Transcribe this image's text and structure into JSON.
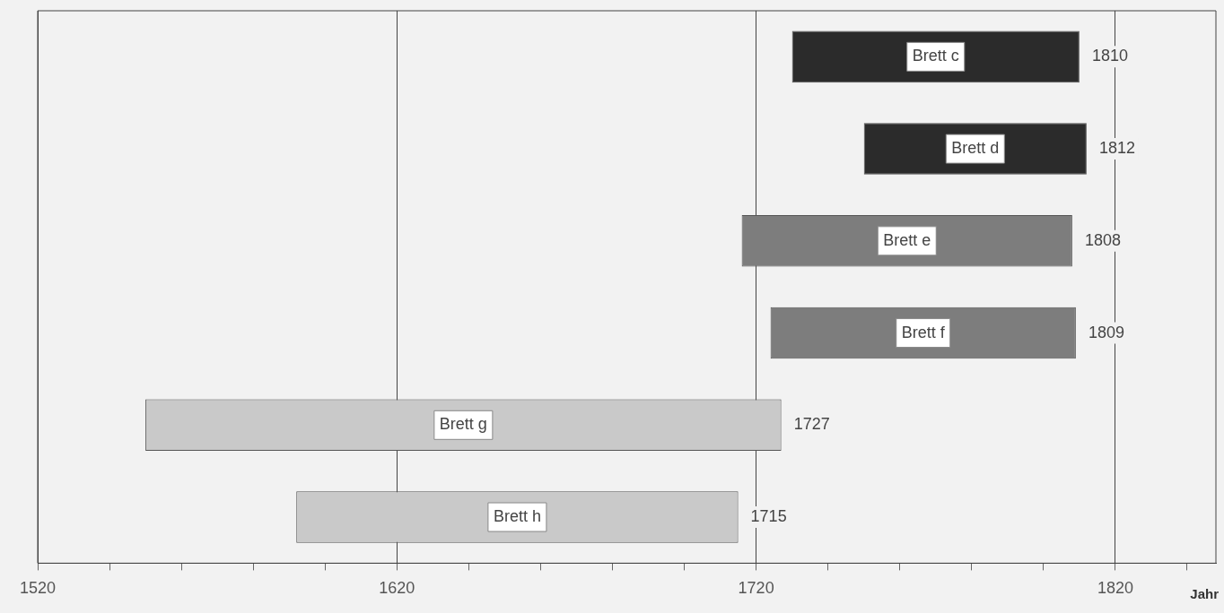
{
  "chart_data": {
    "type": "bar",
    "orientation": "horizontal",
    "xlabel": "Jahr",
    "categories": [
      "Brett c",
      "Brett d",
      "Brett e",
      "Brett f",
      "Brett g",
      "Brett h"
    ],
    "base": [
      1730,
      1750,
      1716,
      1724,
      1550,
      1592
    ],
    "values": [
      80,
      62,
      92,
      85,
      177,
      123
    ],
    "colors": [
      "#2b2b2b",
      "#2b2b2b",
      "#7d7d7d",
      "#7d7d7d",
      "#c9c9c9",
      "#c9c9c9"
    ],
    "value_labels": [
      "1810",
      "1812",
      "1808",
      "1809",
      "1727",
      "1715"
    ],
    "xlim": [
      1520,
      1848
    ],
    "xticks": [
      1520,
      {
        "value": 1540,
        "label": null
      },
      {
        "value": 1560,
        "label": null
      },
      {
        "value": 1580,
        "label": null
      },
      {
        "value": 1600,
        "label": null
      },
      1620,
      {
        "value": 1640,
        "label": null
      },
      {
        "value": 1660,
        "label": null
      },
      {
        "value": 1680,
        "label": null
      },
      {
        "value": 1700,
        "label": null
      },
      1720,
      {
        "value": 1740,
        "label": null
      },
      {
        "value": 1760,
        "label": null
      },
      {
        "value": 1780,
        "label": null
      },
      {
        "value": 1800,
        "label": null
      },
      1820,
      {
        "value": 1840,
        "label": null
      }
    ],
    "grid": "x",
    "tick_labels": "x",
    "legend": false
  }
}
